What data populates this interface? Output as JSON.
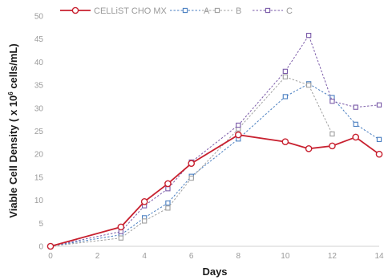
{
  "chart_data": {
    "type": "line",
    "xlabel": "Days",
    "ylabel_main": "Viable Cell Density ( x 10",
    "ylabel_sup": "6",
    "ylabel_tail": " cells/mL)",
    "xlim": [
      0,
      14
    ],
    "ylim": [
      0,
      50
    ],
    "x_ticks": [
      0,
      2,
      4,
      6,
      8,
      10,
      12,
      14
    ],
    "y_ticks": [
      0,
      5,
      10,
      15,
      20,
      25,
      30,
      35,
      40,
      45,
      50
    ],
    "grid": false,
    "legend_position": "top",
    "series": [
      {
        "name": "CELLiST CHO MX",
        "color": "#c8202f",
        "marker": "circle",
        "dash": "solid",
        "points": [
          [
            0,
            0
          ],
          [
            3,
            4.2
          ],
          [
            4,
            9.7
          ],
          [
            5,
            13.6
          ],
          [
            6,
            18
          ],
          [
            8,
            24.2
          ],
          [
            10,
            22.7
          ],
          [
            11,
            21.2
          ],
          [
            12,
            21.8
          ],
          [
            13,
            23.7
          ],
          [
            14,
            20
          ]
        ]
      },
      {
        "name": "A",
        "color": "#4a7fc1",
        "marker": "square",
        "dash": "dashed",
        "points": [
          [
            0,
            0
          ],
          [
            3,
            2.5
          ],
          [
            4,
            6.2
          ],
          [
            5,
            9.4
          ],
          [
            6,
            15.2
          ],
          [
            8,
            23.3
          ],
          [
            10,
            32.5
          ],
          [
            11,
            35.3
          ],
          [
            12,
            32.3
          ],
          [
            13,
            26.5
          ],
          [
            14,
            23.2
          ]
        ]
      },
      {
        "name": "B",
        "color": "#a0a0a0",
        "marker": "square",
        "dash": "dashed",
        "points": [
          [
            0,
            0
          ],
          [
            3,
            1.8
          ],
          [
            4,
            5.5
          ],
          [
            5,
            8.3
          ],
          [
            6,
            14.8
          ],
          [
            8,
            25.5
          ],
          [
            10,
            36.8
          ],
          [
            11,
            35
          ],
          [
            12,
            24.4
          ]
        ]
      },
      {
        "name": "C",
        "color": "#7a5aa8",
        "marker": "square",
        "dash": "dashed",
        "points": [
          [
            0,
            0
          ],
          [
            3,
            3.2
          ],
          [
            4,
            8.8
          ],
          [
            5,
            12.5
          ],
          [
            6,
            18.3
          ],
          [
            8,
            26.3
          ],
          [
            10,
            38
          ],
          [
            11,
            45.8
          ],
          [
            12,
            31.5
          ],
          [
            13,
            30.2
          ],
          [
            14,
            30.7
          ]
        ]
      }
    ]
  }
}
